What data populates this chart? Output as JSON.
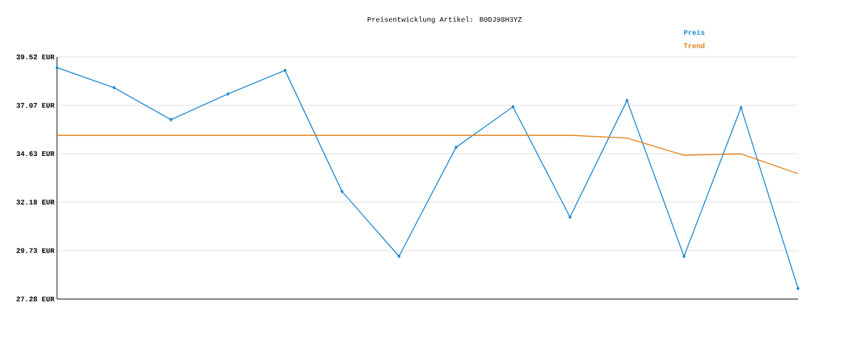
{
  "chart_data": {
    "type": "line",
    "title": "Preisentwicklung Artikel: B0DJ98H3YZ",
    "categories": [
      null,
      null,
      null,
      null,
      null,
      null,
      null,
      null,
      null,
      null,
      null,
      null,
      null,
      null
    ],
    "series": [
      {
        "name": "Preis",
        "color": "#1f88d0",
        "marker": "diamond",
        "values": [
          38.98,
          37.97,
          36.35,
          37.65,
          38.84,
          32.72,
          29.44,
          34.95,
          37.0,
          31.42,
          37.32,
          29.44,
          36.96,
          27.82
        ]
      },
      {
        "name": "Trend",
        "color": "#e07b10",
        "values": [
          35.56,
          35.56,
          35.56,
          35.56,
          35.56,
          35.56,
          35.56,
          35.56,
          35.56,
          35.56,
          35.42,
          34.55,
          34.62,
          33.62
        ]
      }
    ],
    "ylim": [
      27.28,
      39.52
    ],
    "yticks": [
      {
        "value": 27.28,
        "label": "27.28 EUR"
      },
      {
        "value": 29.73,
        "label": "29.73 EUR"
      },
      {
        "value": 32.18,
        "label": "32.18 EUR"
      },
      {
        "value": 34.63,
        "label": "34.63 EUR"
      },
      {
        "value": 37.07,
        "label": "37.07 EUR"
      },
      {
        "value": 39.52,
        "label": "39.52 EUR"
      }
    ],
    "grid": "y",
    "legend": "top right"
  }
}
